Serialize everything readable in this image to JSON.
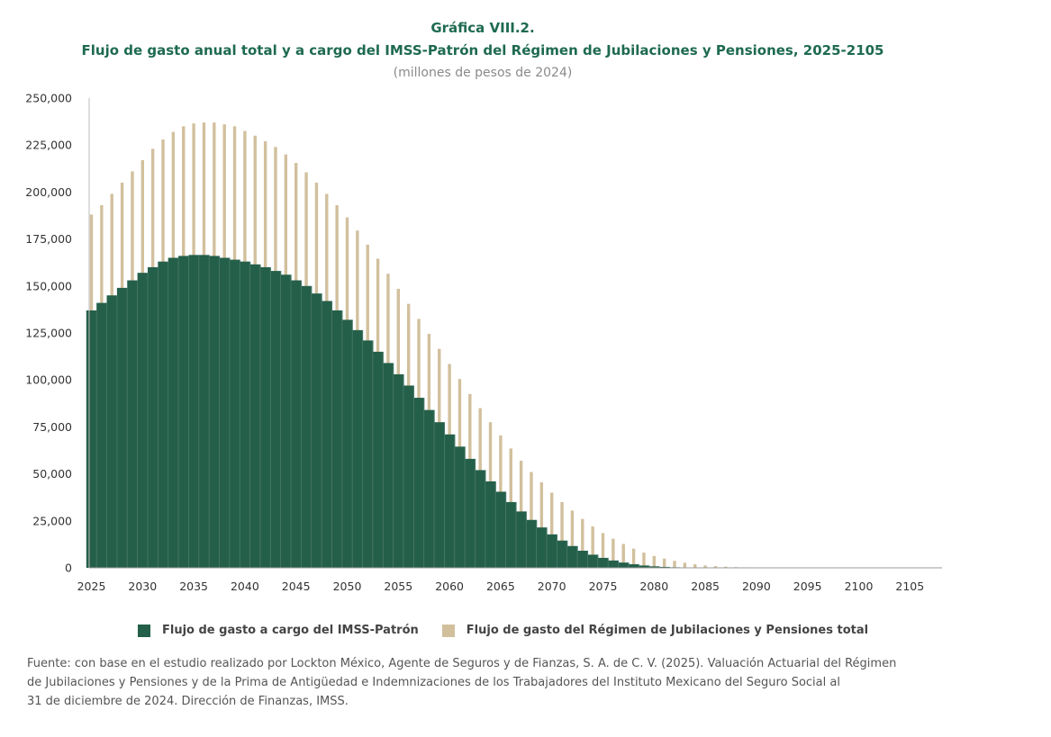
{
  "header": {
    "figure_label": "Gráfica VIII.2.",
    "title": "Flujo de gasto anual total y a cargo del IMSS-Patrón del Régimen de Jubilaciones y Pensiones, 2025-2105",
    "subtitle": "(millones de pesos de 2024)"
  },
  "chart_data": {
    "type": "bar",
    "x": [
      2025,
      2026,
      2027,
      2028,
      2029,
      2030,
      2031,
      2032,
      2033,
      2034,
      2035,
      2036,
      2037,
      2038,
      2039,
      2040,
      2041,
      2042,
      2043,
      2044,
      2045,
      2046,
      2047,
      2048,
      2049,
      2050,
      2051,
      2052,
      2053,
      2054,
      2055,
      2056,
      2057,
      2058,
      2059,
      2060,
      2061,
      2062,
      2063,
      2064,
      2065,
      2066,
      2067,
      2068,
      2069,
      2070,
      2071,
      2072,
      2073,
      2074,
      2075,
      2076,
      2077,
      2078,
      2079,
      2080,
      2081,
      2082,
      2083,
      2084,
      2085,
      2086,
      2087,
      2088,
      2089,
      2090,
      2091,
      2092,
      2093,
      2094,
      2095,
      2096,
      2097,
      2098,
      2099,
      2100,
      2101,
      2102,
      2103,
      2104,
      2105,
      2106,
      2107,
      2108
    ],
    "series": [
      {
        "name": "Flujo de gasto a cargo del IMSS-Patrón",
        "color": "#245f4a",
        "values": [
          137000,
          141000,
          145000,
          149000,
          153000,
          157000,
          160000,
          163000,
          165000,
          166000,
          166500,
          166500,
          166000,
          165000,
          164000,
          163000,
          161500,
          160000,
          158000,
          156000,
          153000,
          150000,
          146000,
          142000,
          137000,
          132000,
          126500,
          121000,
          115000,
          109000,
          103000,
          97000,
          90500,
          84000,
          77500,
          71000,
          64500,
          58000,
          52000,
          46000,
          40500,
          35000,
          30000,
          25500,
          21500,
          17800,
          14500,
          11600,
          9100,
          7000,
          5300,
          3900,
          2800,
          1900,
          1250,
          800,
          500,
          300,
          180,
          100,
          60,
          30,
          15,
          8,
          4,
          2,
          1,
          0,
          0,
          0,
          0,
          0,
          0,
          0,
          0,
          0,
          0,
          0,
          0,
          0,
          0,
          0,
          0,
          0
        ]
      },
      {
        "name": "Flujo de gasto del Régimen de Jubilaciones y Pensiones total",
        "color": "#d2c09d",
        "values": [
          188000,
          193000,
          199000,
          205000,
          211000,
          217000,
          223000,
          228000,
          232000,
          235000,
          236500,
          237000,
          237000,
          236000,
          235000,
          232500,
          230000,
          227000,
          224000,
          220000,
          215500,
          210500,
          205000,
          199000,
          193000,
          186500,
          179500,
          172000,
          164500,
          156500,
          148500,
          140500,
          132500,
          124500,
          116500,
          108500,
          100500,
          92500,
          85000,
          77500,
          70500,
          63500,
          57000,
          51000,
          45500,
          40000,
          35000,
          30500,
          26000,
          22000,
          18500,
          15500,
          12700,
          10200,
          8100,
          6300,
          4900,
          3700,
          2700,
          1900,
          1300,
          900,
          600,
          400,
          250,
          150,
          80,
          40,
          20,
          10,
          5,
          2,
          1,
          0,
          0,
          0,
          0,
          0,
          0,
          0,
          0,
          0,
          0,
          0
        ]
      }
    ],
    "xticks": [
      "2025",
      "2030",
      "2035",
      "2040",
      "2045",
      "2050",
      "2055",
      "2060",
      "2065",
      "2070",
      "2075",
      "2080",
      "2085",
      "2090",
      "2095",
      "2100",
      "2105"
    ],
    "yticks": [
      "0",
      "25,000",
      "50,000",
      "75,000",
      "100,000",
      "125,000",
      "150,000",
      "175,000",
      "200,000",
      "225,000",
      "250,000"
    ],
    "ylim": [
      0,
      250000
    ],
    "xlim": [
      2025,
      2108
    ],
    "grid": false,
    "legend": "bottom"
  },
  "source": {
    "line1": "Fuente: con base en el estudio realizado por Lockton México, Agente de Seguros y de Fianzas, S. A. de C. V. (2025). Valuación Actuarial del Régimen",
    "line2": "de Jubilaciones y Pensiones y de la Prima de Antigüedad e Indemnizaciones de los Trabajadores del Instituto Mexicano del Seguro Social al",
    "line3": "31 de diciembre de 2024. Dirección de Finanzas, IMSS."
  }
}
